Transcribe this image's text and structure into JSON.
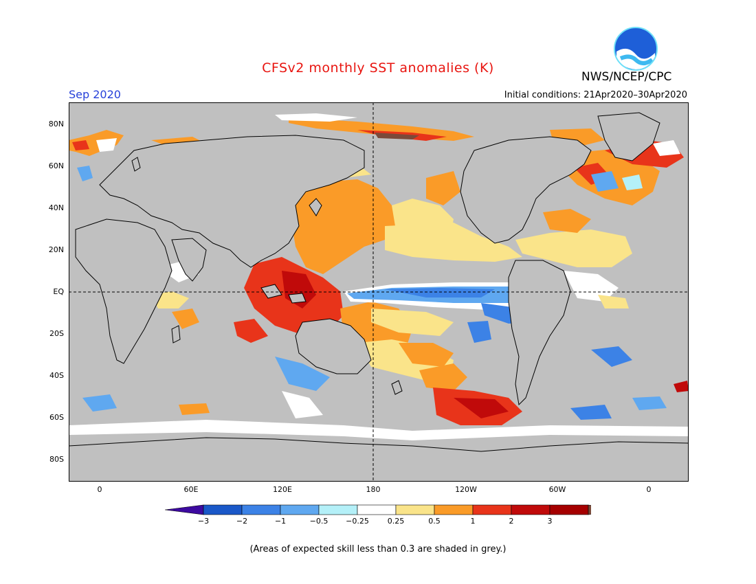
{
  "header": {
    "title": "CFSv2 monthly SST anomalies (K)",
    "month": "Sep 2020",
    "initial_conditions": "Initial conditions: 21Apr2020–30Apr2020",
    "agency": "NWS/NCEP/CPC",
    "logo_text": "NOAA"
  },
  "map": {
    "lat_labels": [
      "80N",
      "60N",
      "40N",
      "20N",
      "EQ",
      "20S",
      "40S",
      "60S",
      "80S"
    ],
    "lon_labels": [
      "0",
      "60E",
      "120E",
      "180",
      "120W",
      "60W",
      "0"
    ],
    "ocean_grey": "#c0c0c0",
    "land_color": "#c0c0c0",
    "coast_color": "#000000"
  },
  "colorbar": {
    "ticks": [
      "−3",
      "−2",
      "−1",
      "−0.5",
      "−0.25",
      "0.25",
      "0.5",
      "1",
      "2",
      "3"
    ],
    "colors": [
      "#3d0aa0",
      "#1a58c8",
      "#3c82e6",
      "#5fa8f0",
      "#b4f0f8",
      "#ffffff",
      "#fae48a",
      "#fa9b28",
      "#e8341a",
      "#c00a0a",
      "#a50000",
      "#7a4a3a"
    ]
  },
  "footer": {
    "note": "(Areas of expected skill less than 0.3 are shaded in grey.)"
  }
}
